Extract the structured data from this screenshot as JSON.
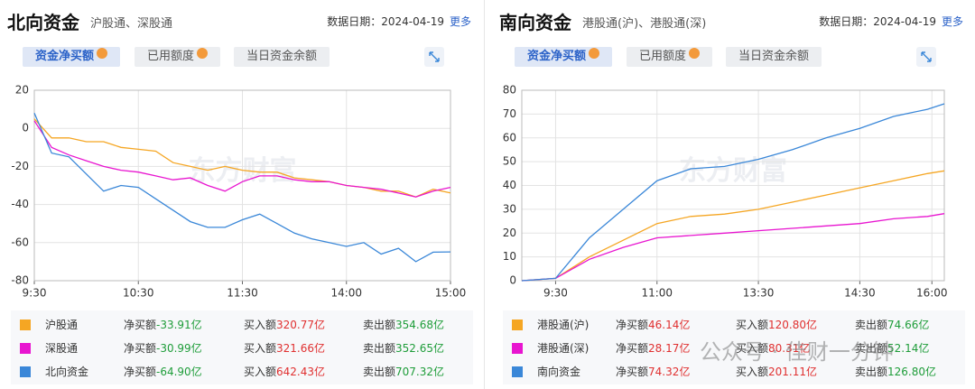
{
  "panels": [
    {
      "title": "北向资金",
      "subtitle": "沪股通、深股通",
      "date_label": "数据日期：",
      "date": "2024-04-19",
      "more": "更多",
      "tabs": [
        "资金净买额",
        "已用额度",
        "当日资金余额"
      ],
      "table": [
        {
          "name": "沪股通",
          "color": "#f5a623",
          "net_label": "净买额",
          "net": "-33.91亿",
          "net_color": "#1f9d3a",
          "buy_label": "买入额",
          "buy": "320.77亿",
          "sell_label": "卖出额",
          "sell": "354.68亿"
        },
        {
          "name": "深股通",
          "color": "#e815d0",
          "net_label": "净买额",
          "net": "-30.99亿",
          "net_color": "#1f9d3a",
          "buy_label": "买入额",
          "buy": "321.66亿",
          "sell_label": "卖出额",
          "sell": "352.65亿"
        },
        {
          "name": "北向资金",
          "color": "#3a87d8",
          "net_label": "净买额",
          "net": "-64.90亿",
          "net_color": "#1f9d3a",
          "buy_label": "买入额",
          "buy": "642.43亿",
          "sell_label": "卖出额",
          "sell": "707.32亿"
        }
      ]
    },
    {
      "title": "南向资金",
      "subtitle": "港股通(沪)、港股通(深)",
      "date_label": "数据日期：",
      "date": "2024-04-19",
      "more": "更多",
      "tabs": [
        "资金净买额",
        "已用额度",
        "当日资金余额"
      ],
      "table": [
        {
          "name": "港股通(沪)",
          "color": "#f5a623",
          "net_label": "净买额",
          "net": "46.14亿",
          "net_color": "#e03030",
          "buy_label": "买入额",
          "buy": "120.80亿",
          "sell_label": "卖出额",
          "sell": "74.66亿"
        },
        {
          "name": "港股通(深)",
          "color": "#e815d0",
          "net_label": "净买额",
          "net": "28.17亿",
          "net_color": "#e03030",
          "buy_label": "买入额",
          "buy": "80.31亿",
          "sell_label": "卖出额",
          "sell": "52.14亿"
        },
        {
          "name": "南向资金",
          "color": "#3a87d8",
          "net_label": "净买额",
          "net": "74.32亿",
          "net_color": "#e03030",
          "buy_label": "买入额",
          "buy": "201.11亿",
          "sell_label": "卖出额",
          "sell": "126.80亿"
        }
      ]
    }
  ],
  "watermark": "东方财富",
  "overlay": "公众号 · 佳财一分钟",
  "chart_data": [
    {
      "type": "line",
      "grid": true,
      "x": [
        0,
        10,
        20,
        30,
        40,
        50,
        60,
        70,
        80,
        90,
        100,
        110,
        120,
        130,
        140,
        150,
        160,
        170,
        180,
        190,
        200,
        210,
        220,
        230,
        240
      ],
      "xlim": [
        0,
        240
      ],
      "xticks": [
        {
          "value": 0,
          "label": "9:30"
        },
        {
          "value": 60,
          "label": "10:30"
        },
        {
          "value": 120,
          "label": "11:30"
        },
        {
          "value": 180,
          "label": "14:00"
        },
        {
          "value": 240,
          "label": "15:00"
        }
      ],
      "ylim": [
        -80,
        20
      ],
      "yticks": [
        -80,
        -60,
        -40,
        -20,
        0,
        20
      ],
      "series": [
        {
          "name": "沪股通",
          "color": "#f5a623",
          "values": [
            5,
            -5,
            -5,
            -7,
            -7,
            -10,
            -11,
            -12,
            -18,
            -20,
            -22,
            -20,
            -22,
            -23,
            -23,
            -26,
            -27,
            -28,
            -30,
            -31,
            -33,
            -33,
            -36,
            -32,
            -33.91
          ]
        },
        {
          "name": "深股通",
          "color": "#e815d0",
          "values": [
            4,
            -10,
            -14,
            -17,
            -20,
            -22,
            -23,
            -25,
            -27,
            -26,
            -30,
            -33,
            -28,
            -25,
            -25,
            -27,
            -28,
            -28,
            -30,
            -31,
            -32,
            -34,
            -36,
            -33,
            -30.99
          ]
        },
        {
          "name": "北向资金",
          "color": "#3a87d8",
          "values": [
            8,
            -13,
            -15,
            -24,
            -33,
            -30,
            -31,
            -37,
            -43,
            -49,
            -52,
            -52,
            -48,
            -45,
            -50,
            -55,
            -58,
            -60,
            -62,
            -60,
            -66,
            -63,
            -70,
            -65,
            -64.9
          ]
        }
      ]
    },
    {
      "type": "line",
      "grid": true,
      "x": [
        -30,
        0,
        30,
        60,
        90,
        120,
        150,
        180,
        210,
        240,
        270,
        300,
        330,
        345
      ],
      "xlim": [
        -30,
        345
      ],
      "xticks": [
        {
          "value": 0,
          "label": "9:30"
        },
        {
          "value": 90,
          "label": "11:00"
        },
        {
          "value": 180,
          "label": "13:30"
        },
        {
          "value": 270,
          "label": "14:30"
        },
        {
          "value": 334,
          "label": "16:00"
        }
      ],
      "ylim": [
        0,
        80
      ],
      "yticks": [
        0,
        10,
        20,
        30,
        40,
        50,
        60,
        70,
        80
      ],
      "series": [
        {
          "name": "港股通(沪)",
          "color": "#f5a623",
          "values": [
            0,
            1,
            10,
            17,
            24,
            27,
            28,
            30,
            33,
            36,
            39,
            42,
            45,
            46.14
          ]
        },
        {
          "name": "港股通(深)",
          "color": "#e815d0",
          "values": [
            0,
            1,
            9,
            14,
            18,
            19,
            20,
            21,
            22,
            23,
            24,
            26,
            27,
            28.17
          ]
        },
        {
          "name": "南向资金",
          "color": "#3a87d8",
          "values": [
            0,
            1,
            18,
            30,
            42,
            47,
            48,
            51,
            55,
            60,
            64,
            69,
            72,
            74.32
          ]
        }
      ]
    }
  ]
}
